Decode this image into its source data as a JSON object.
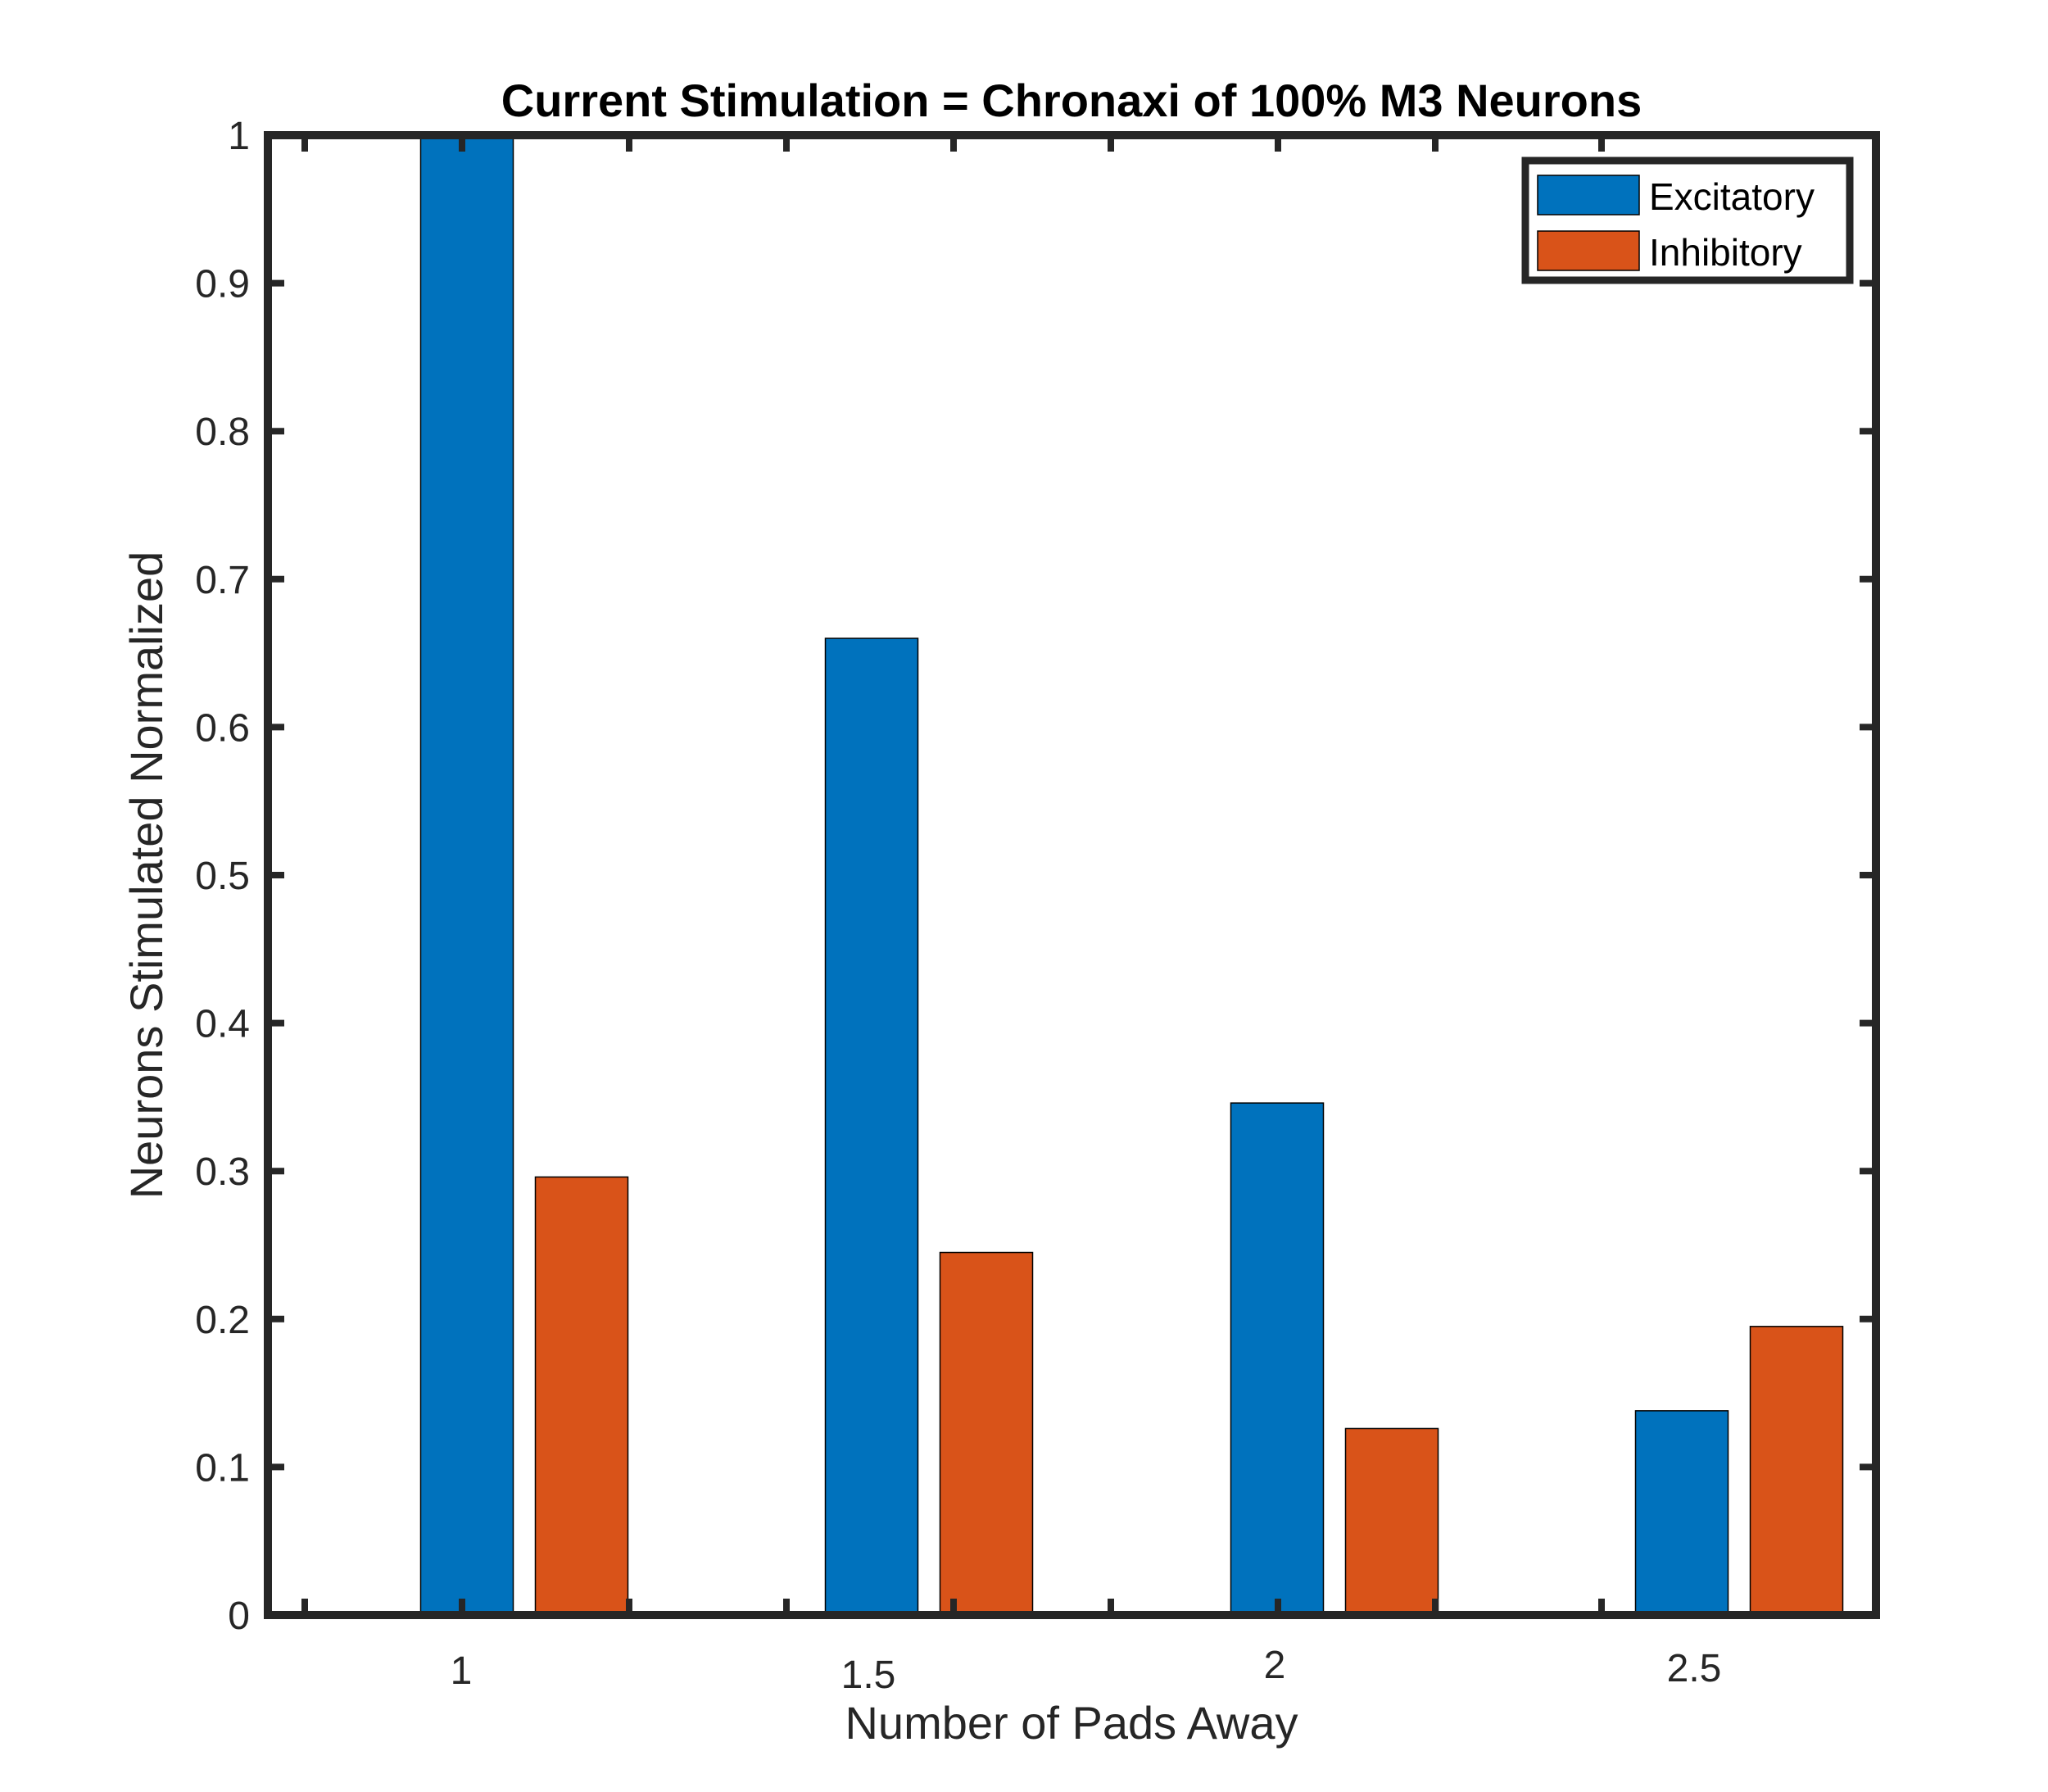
{
  "chart_data": {
    "type": "bar",
    "title": "Current Stimulation = Chronaxi of 100% M3 Neurons",
    "xlabel": "Number of Pads Away",
    "ylabel": "Neurons Stimulated Normalized",
    "categories": [
      "1",
      "1.5",
      "2",
      "2.5"
    ],
    "series": [
      {
        "name": "Excitatory",
        "color": "#0072BD",
        "values": [
          1.0,
          0.66,
          0.346,
          0.138
        ]
      },
      {
        "name": "Inhibitory",
        "color": "#D95319",
        "values": [
          0.296,
          0.245,
          0.126,
          0.195
        ]
      }
    ],
    "ylim": [
      0,
      1
    ],
    "yticks": [
      "0",
      "0.1",
      "0.2",
      "0.3",
      "0.4",
      "0.5",
      "0.6",
      "0.7",
      "0.8",
      "0.9",
      "1"
    ],
    "grid": false,
    "legend_position": "top-right"
  }
}
